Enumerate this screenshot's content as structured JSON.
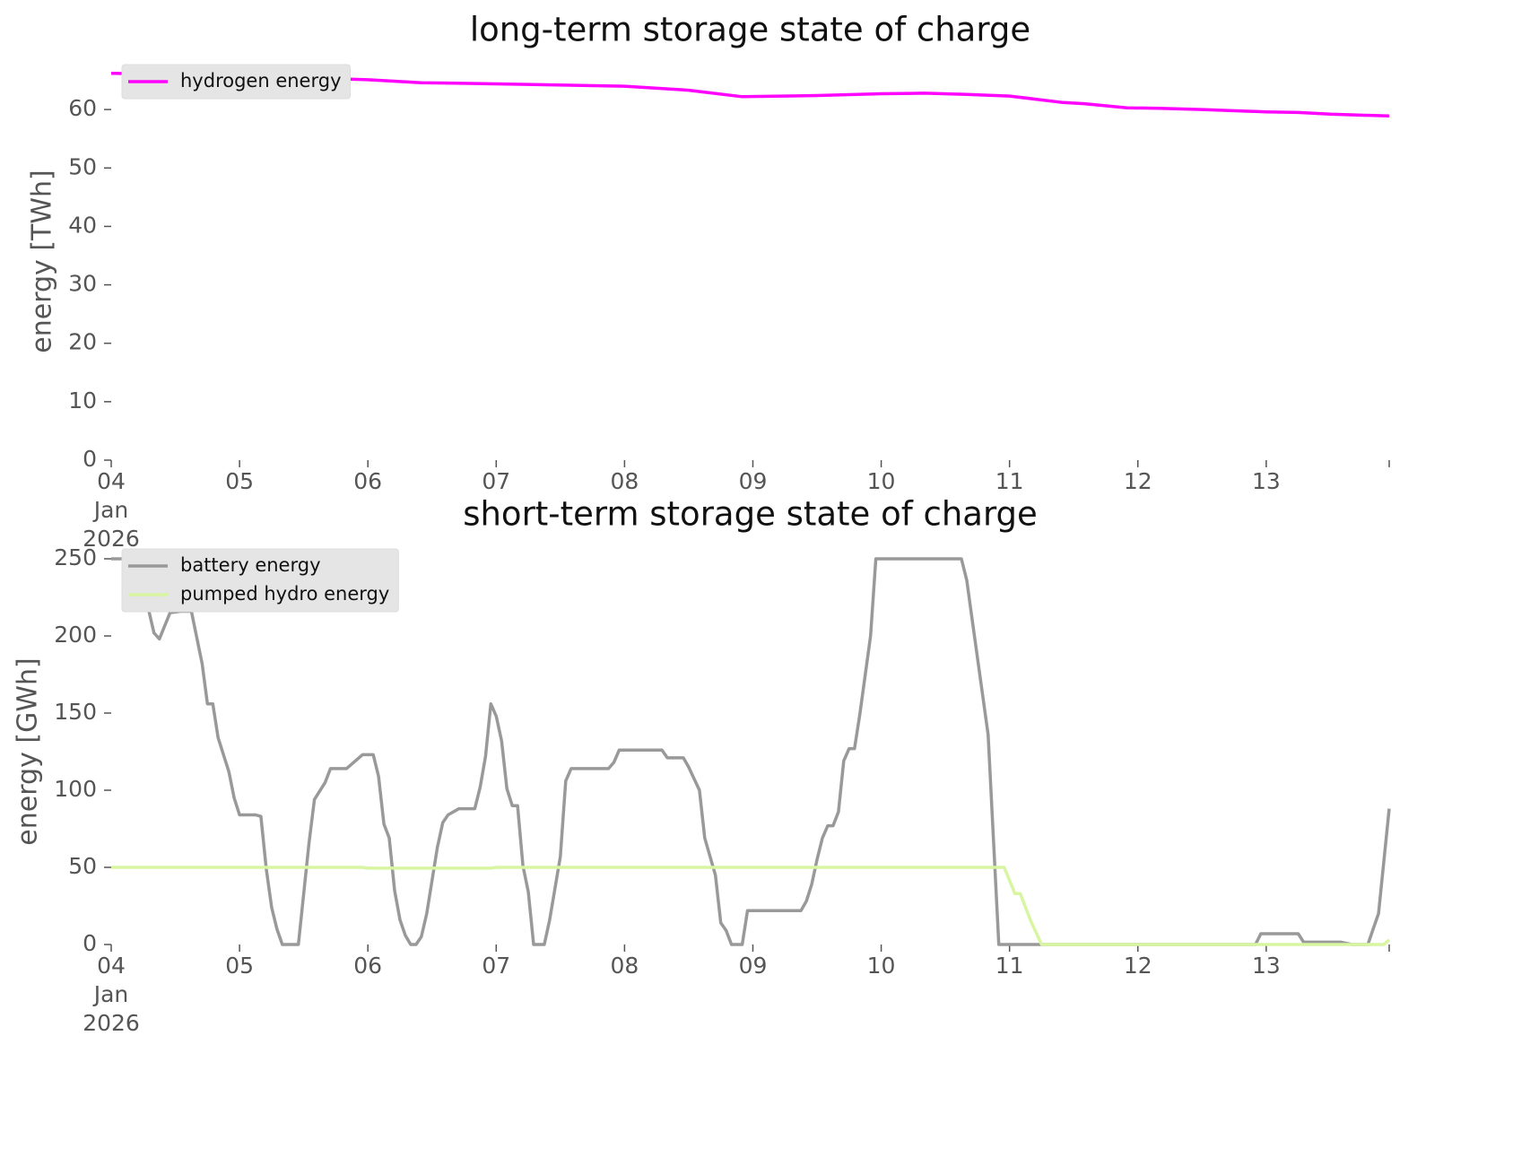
{
  "chart_data": [
    {
      "type": "line",
      "title": "long-term storage state of charge",
      "ylabel": "energy [TWh]",
      "legend": "upper left",
      "xlim": [
        "2026-01-04T00:00",
        "2026-01-13T23:00"
      ],
      "ylim": [
        0,
        68
      ],
      "yticks": [
        0,
        10,
        20,
        30,
        40,
        50,
        60
      ],
      "xticks": [
        {
          "value": "2026-01-04",
          "label": "04\nJan\n2026"
        },
        {
          "value": "2026-01-05",
          "label": "05"
        },
        {
          "value": "2026-01-06",
          "label": "06"
        },
        {
          "value": "2026-01-07",
          "label": "07"
        },
        {
          "value": "2026-01-08",
          "label": "08"
        },
        {
          "value": "2026-01-09",
          "label": "09"
        },
        {
          "value": "2026-01-10",
          "label": "10"
        },
        {
          "value": "2026-01-11",
          "label": "11"
        },
        {
          "value": "2026-01-12",
          "label": "12"
        },
        {
          "value": "2026-01-13",
          "label": "13"
        }
      ],
      "series": [
        {
          "name": "hydrogen energy",
          "color": "#ff00ff",
          "x": [
            "2026-01-04T00:00",
            "2026-01-05T00:00",
            "2026-01-06T00:00",
            "2026-01-06T10:00",
            "2026-01-07T00:00",
            "2026-01-08T00:00",
            "2026-01-08T12:00",
            "2026-01-08T22:00",
            "2026-01-09T12:00",
            "2026-01-10T00:00",
            "2026-01-10T08:00",
            "2026-01-10T16:00",
            "2026-01-11T00:00",
            "2026-01-11T10:00",
            "2026-01-11T14:00",
            "2026-01-11T22:00",
            "2026-01-12T04:00",
            "2026-01-12T12:00",
            "2026-01-13T00:00",
            "2026-01-13T06:00",
            "2026-01-13T12:00",
            "2026-01-13T23:00"
          ],
          "values": [
            66.2,
            65.8,
            65.1,
            64.6,
            64.4,
            64.0,
            63.3,
            62.2,
            62.4,
            62.7,
            62.8,
            62.6,
            62.3,
            61.2,
            61.0,
            60.3,
            60.2,
            60.0,
            59.6,
            59.5,
            59.2,
            58.9
          ]
        }
      ]
    },
    {
      "type": "line",
      "title": "short-term storage state of charge",
      "ylabel": "energy [GWh]",
      "legend": "upper left",
      "xlim": [
        "2026-01-04T00:00",
        "2026-01-13T23:00"
      ],
      "ylim": [
        0,
        250
      ],
      "yticks": [
        0,
        50,
        100,
        150,
        200,
        250
      ],
      "xticks": [
        {
          "value": "2026-01-04",
          "label": "04\nJan\n2026"
        },
        {
          "value": "2026-01-05",
          "label": "05"
        },
        {
          "value": "2026-01-06",
          "label": "06"
        },
        {
          "value": "2026-01-07",
          "label": "07"
        },
        {
          "value": "2026-01-08",
          "label": "08"
        },
        {
          "value": "2026-01-09",
          "label": "09"
        },
        {
          "value": "2026-01-10",
          "label": "10"
        },
        {
          "value": "2026-01-11",
          "label": "11"
        },
        {
          "value": "2026-01-12",
          "label": "12"
        },
        {
          "value": "2026-01-13",
          "label": "13"
        }
      ],
      "series": [
        {
          "name": "battery energy",
          "color": "#999999",
          "x": [
            "2026-01-04T00:00",
            "2026-01-04T04:00",
            "2026-01-04T06:00",
            "2026-01-04T07:00",
            "2026-01-04T08:00",
            "2026-01-04T09:00",
            "2026-01-04T11:00",
            "2026-01-04T13:00",
            "2026-01-04T15:00",
            "2026-01-04T17:00",
            "2026-01-04T18:00",
            "2026-01-04T19:00",
            "2026-01-04T20:00",
            "2026-01-04T22:00",
            "2026-01-04T23:00",
            "2026-01-05T00:00",
            "2026-01-05T03:00",
            "2026-01-05T04:00",
            "2026-01-05T05:00",
            "2026-01-05T06:00",
            "2026-01-05T07:00",
            "2026-01-05T08:00",
            "2026-01-05T11:00",
            "2026-01-05T13:00",
            "2026-01-05T14:00",
            "2026-01-05T16:00",
            "2026-01-05T17:00",
            "2026-01-05T20:00",
            "2026-01-05T23:00",
            "2026-01-06T01:00",
            "2026-01-06T02:00",
            "2026-01-06T03:00",
            "2026-01-06T04:00",
            "2026-01-06T05:00",
            "2026-01-06T06:00",
            "2026-01-06T07:00",
            "2026-01-06T08:00",
            "2026-01-06T09:00",
            "2026-01-06T10:00",
            "2026-01-06T11:00",
            "2026-01-06T13:00",
            "2026-01-06T14:00",
            "2026-01-06T15:00",
            "2026-01-06T17:00",
            "2026-01-06T20:00",
            "2026-01-06T21:00",
            "2026-01-06T22:00",
            "2026-01-06T23:00",
            "2026-01-07T00:00",
            "2026-01-07T01:00",
            "2026-01-07T02:00",
            "2026-01-07T03:00",
            "2026-01-07T04:00",
            "2026-01-07T05:00",
            "2026-01-07T06:00",
            "2026-01-07T07:00",
            "2026-01-07T09:00",
            "2026-01-07T10:00",
            "2026-01-07T12:00",
            "2026-01-07T13:00",
            "2026-01-07T14:00",
            "2026-01-07T21:00",
            "2026-01-07T22:00",
            "2026-01-07T23:00",
            "2026-01-08T07:00",
            "2026-01-08T08:00",
            "2026-01-08T11:00",
            "2026-01-08T12:00",
            "2026-01-08T14:00",
            "2026-01-08T15:00",
            "2026-01-08T17:00",
            "2026-01-08T18:00",
            "2026-01-08T19:00",
            "2026-01-08T20:00",
            "2026-01-08T22:00",
            "2026-01-08T23:00",
            "2026-01-09T09:00",
            "2026-01-09T10:00",
            "2026-01-09T11:00",
            "2026-01-09T12:00",
            "2026-01-09T13:00",
            "2026-01-09T14:00",
            "2026-01-09T15:00",
            "2026-01-09T16:00",
            "2026-01-09T17:00",
            "2026-01-09T18:00",
            "2026-01-09T19:00",
            "2026-01-09T20:00",
            "2026-01-09T22:00",
            "2026-01-09T23:00",
            "2026-01-10T15:00",
            "2026-01-10T16:00",
            "2026-01-10T17:00",
            "2026-01-10T20:00",
            "2026-01-10T22:00",
            "2026-01-12T22:00",
            "2026-01-12T23:00",
            "2026-01-13T06:00",
            "2026-01-13T07:00",
            "2026-01-13T14:00",
            "2026-01-13T16:00",
            "2026-01-13T19:00",
            "2026-01-13T20:00",
            "2026-01-13T21:00",
            "2026-01-13T23:00"
          ],
          "values": [
            250,
            250,
            231,
            217,
            202,
            198,
            215,
            216,
            216,
            182,
            156,
            156,
            134,
            112,
            95,
            84,
            84,
            83,
            49,
            24,
            10,
            0,
            0,
            66,
            94,
            105,
            114,
            114,
            123,
            123,
            109,
            78,
            69,
            35,
            16,
            6,
            0,
            0,
            5,
            20,
            63,
            79,
            84,
            88,
            88,
            102,
            122,
            156,
            148,
            132,
            101,
            90,
            90,
            51,
            34,
            0,
            0,
            16,
            57,
            106,
            114,
            114,
            118,
            126,
            126,
            121,
            121,
            115,
            100,
            69,
            45,
            14,
            9,
            0,
            0,
            22,
            22,
            28,
            39,
            55,
            69,
            77,
            77,
            86,
            119,
            127,
            127,
            149,
            200,
            250,
            250,
            236,
            211,
            136,
            0,
            0,
            7,
            7,
            1.5,
            1.5,
            0,
            0,
            10,
            20,
            88
          ]
        },
        {
          "name": "pumped hydro energy",
          "color": "#d8f5a2",
          "x": [
            "2026-01-04T00:00",
            "2026-01-05T23:00",
            "2026-01-06T00:00",
            "2026-01-06T23:00",
            "2026-01-07T00:00",
            "2026-01-10T23:00",
            "2026-01-11T01:00",
            "2026-01-11T02:00",
            "2026-01-11T04:00",
            "2026-01-11T06:00",
            "2026-01-13T22:00",
            "2026-01-13T23:00"
          ],
          "values": [
            50,
            50,
            49.5,
            49.5,
            50,
            50,
            33,
            33,
            15,
            0,
            0,
            3
          ]
        }
      ]
    }
  ]
}
